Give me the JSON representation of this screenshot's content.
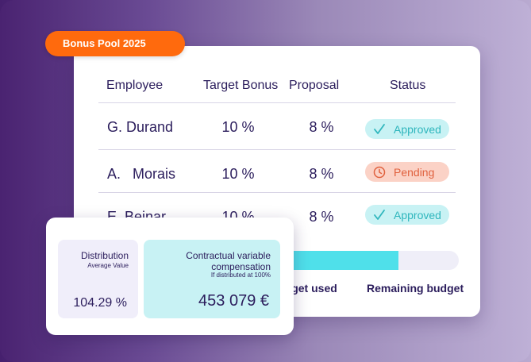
{
  "tag": {
    "label": "Bonus Pool 2025",
    "color": "#ff6a0d"
  },
  "table": {
    "headers": {
      "employee": "Employee",
      "target_bonus": "Target Bonus",
      "proposal": "Proposal",
      "status": "Status"
    },
    "rows": [
      {
        "employee": "G. Durand",
        "target_bonus": "10 %",
        "proposal": "8 %",
        "status": "Approved",
        "status_icon": "check-icon"
      },
      {
        "employee": "A.   Morais",
        "target_bonus": "10 %",
        "proposal": "8 %",
        "status": "Pending",
        "status_icon": "clock-icon"
      },
      {
        "employee": "E. Beinar",
        "target_bonus": "10 %",
        "proposal": "8 %",
        "status": "Approved",
        "status_icon": "check-icon"
      }
    ]
  },
  "budget": {
    "used_fraction": 0.68,
    "used_label": "Budget used",
    "remaining_label": "Remaining budget",
    "fill_color": "#4fe0ea"
  },
  "stats": {
    "distribution": {
      "title": "Distribution",
      "subtitle": "Average Value",
      "value": "104.29 %"
    },
    "compensation": {
      "title": "Contractual variable compensation",
      "subtitle": "If distributed at 100%",
      "value": "453 079 €"
    }
  },
  "colors": {
    "approved_bg": "#c8f2f4",
    "approved_text": "#2fb6bd",
    "pending_bg": "#fbd2c6",
    "pending_text": "#e0613e",
    "text_primary": "#2b1d5c"
  }
}
